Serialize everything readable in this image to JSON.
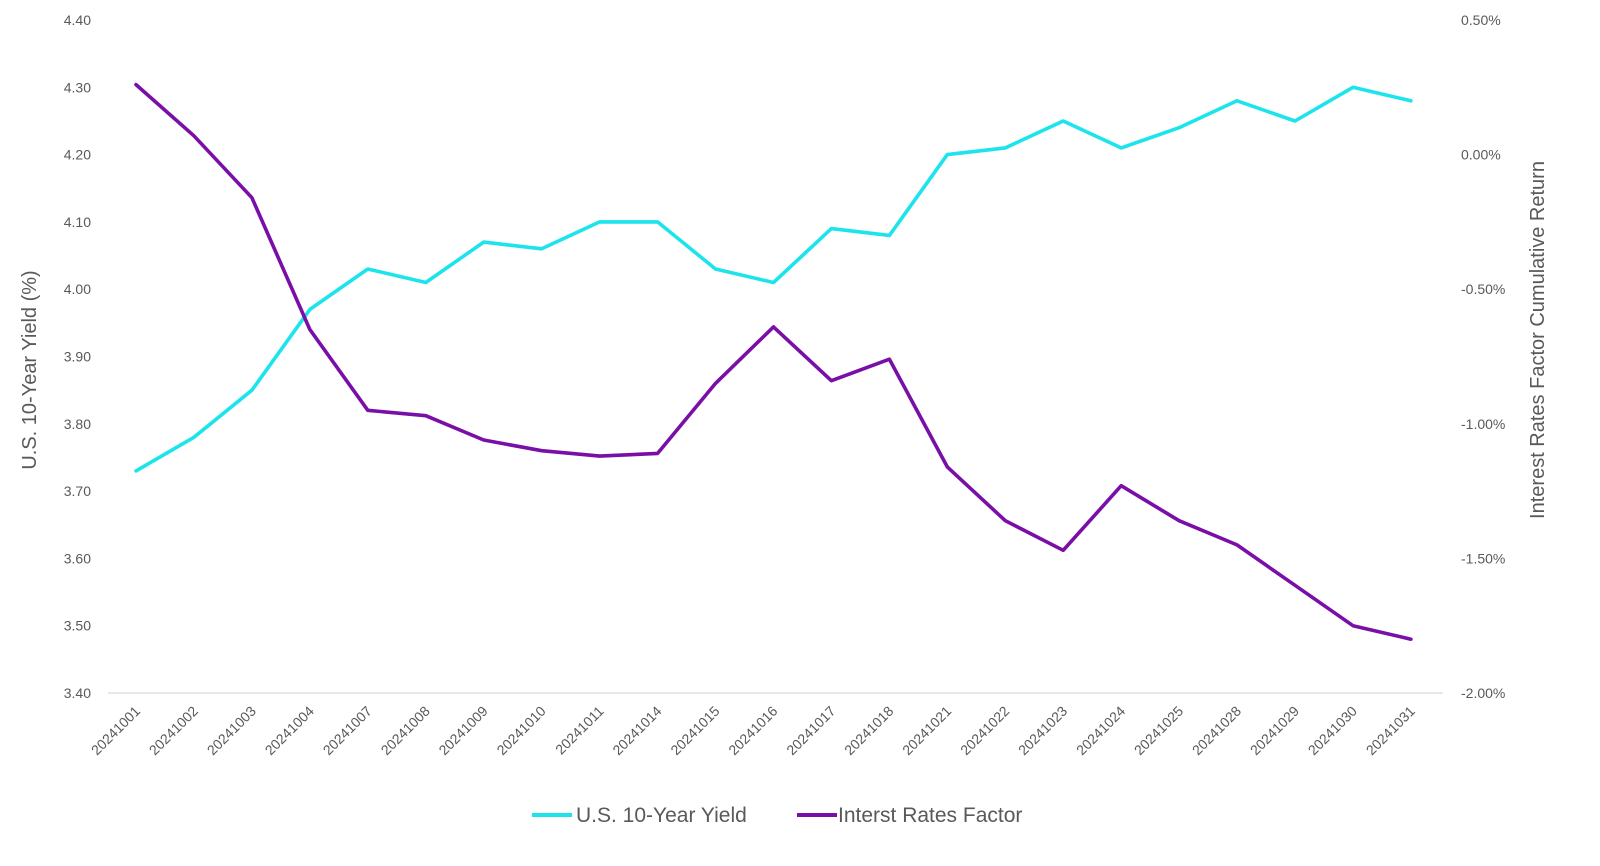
{
  "chart_data": {
    "type": "line",
    "categories": [
      "20241001",
      "20241002",
      "20241003",
      "20241004",
      "20241007",
      "20241008",
      "20241009",
      "20241010",
      "20241011",
      "20241014",
      "20241015",
      "20241016",
      "20241017",
      "20241018",
      "20241021",
      "20241022",
      "20241023",
      "20241024",
      "20241025",
      "20241028",
      "20241029",
      "20241030",
      "20241031"
    ],
    "series": [
      {
        "name": "U.S. 10-Year Yield",
        "axis": "left",
        "color": "#1de4ec",
        "values": [
          3.73,
          3.78,
          3.85,
          3.97,
          4.03,
          4.01,
          4.07,
          4.06,
          4.1,
          4.1,
          4.03,
          4.01,
          4.09,
          4.08,
          4.2,
          4.21,
          4.25,
          4.21,
          4.24,
          4.28,
          4.25,
          4.3,
          4.28
        ]
      },
      {
        "name": "Interst Rates Factor",
        "axis": "right",
        "color": "#7a0fa8",
        "values": [
          0.26,
          0.07,
          -0.16,
          -0.65,
          -0.95,
          -0.97,
          -1.06,
          -1.1,
          -1.12,
          -1.11,
          -0.85,
          -0.64,
          -0.84,
          -0.76,
          -1.16,
          -1.36,
          -1.47,
          -1.23,
          -1.36,
          -1.45,
          -1.6,
          -1.75,
          -1.8
        ]
      }
    ],
    "ylabel": "U.S. 10-Year Yield (%)",
    "y2label": "Interest Rates Factor Cumulative Return",
    "ylim": [
      3.4,
      4.4
    ],
    "y2lim": [
      -2.0,
      0.5
    ],
    "yticks": [
      "4.40",
      "4.30",
      "4.20",
      "4.10",
      "4.00",
      "3.90",
      "3.80",
      "3.70",
      "3.60",
      "3.50",
      "3.40"
    ],
    "y2ticks": [
      "0.50%",
      "0.00%",
      "-0.50%",
      "-1.00%",
      "-1.50%",
      "-2.00%"
    ],
    "grid": false,
    "legend": "bottom"
  }
}
